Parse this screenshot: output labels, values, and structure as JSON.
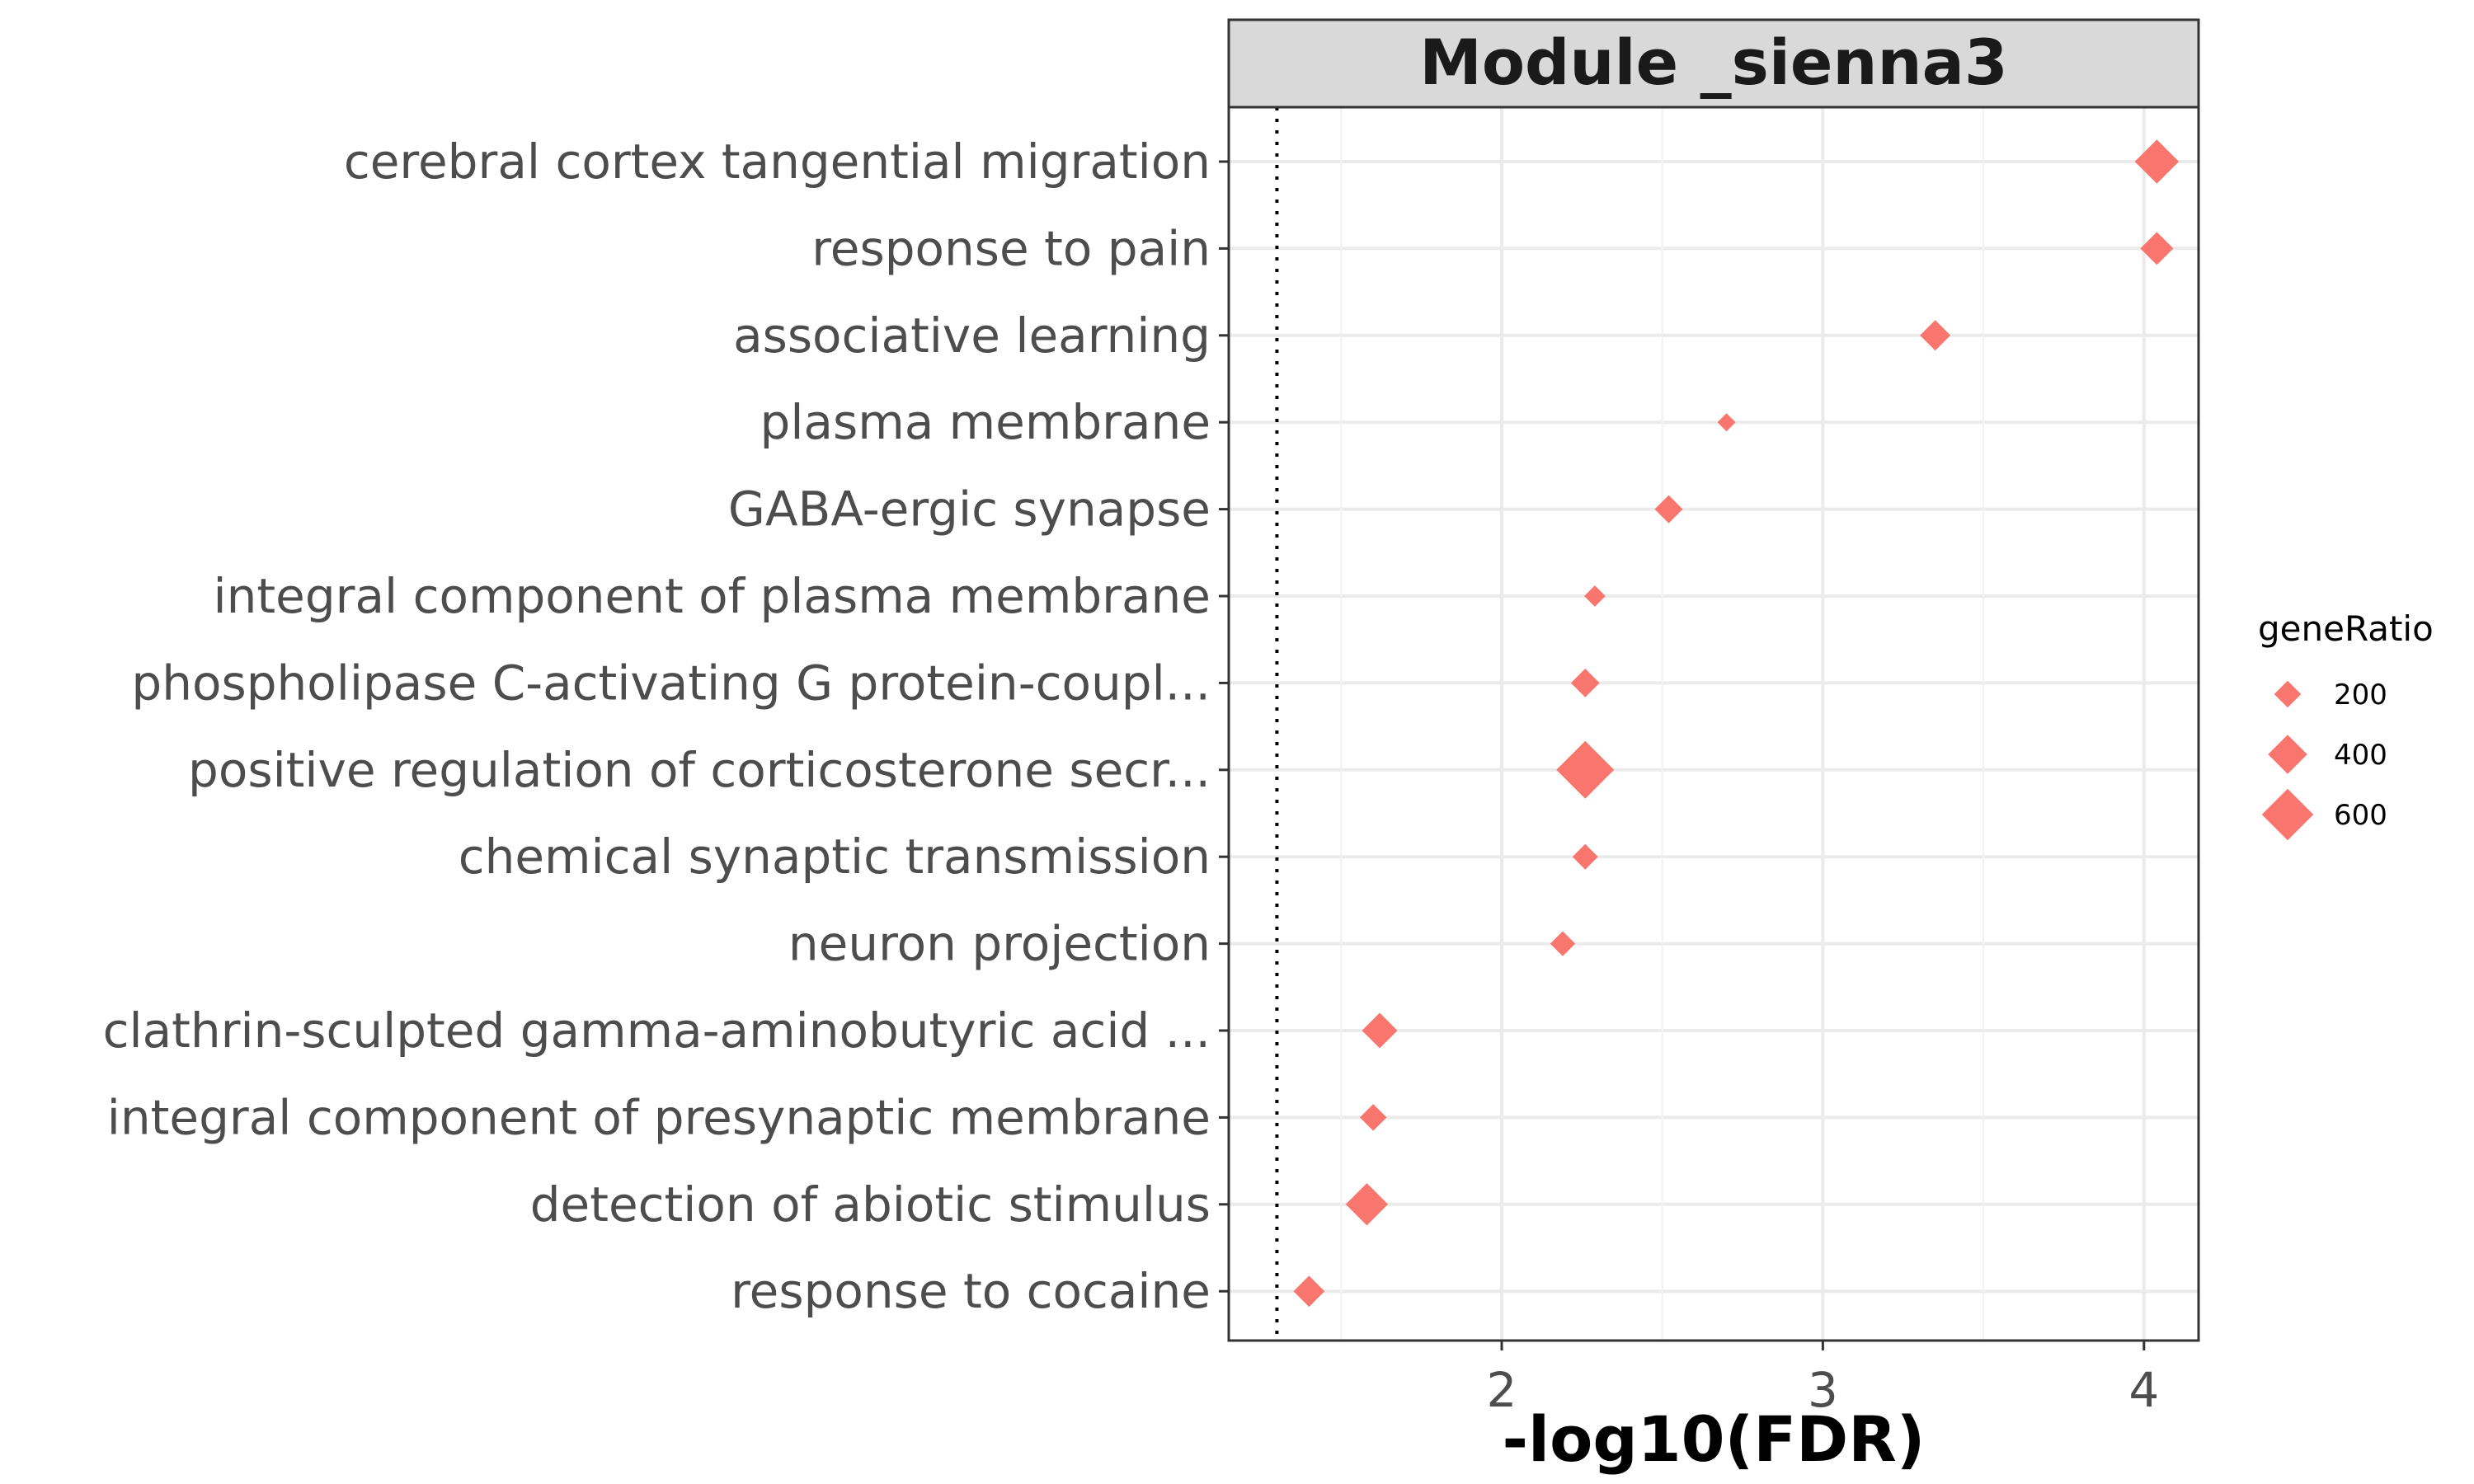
{
  "chart_data": {
    "type": "scatter",
    "title": "Module _sienna3",
    "xlabel": "-log10(FDR)",
    "ylabel": "",
    "xlim": [
      1.15,
      4.17
    ],
    "xticks": [
      2,
      3,
      4
    ],
    "reference_line": 1.3,
    "categories": [
      "cerebral cortex tangential migration",
      "response to pain",
      "associative learning",
      "plasma membrane",
      "GABA-ergic synapse",
      "integral component of plasma membrane",
      "phospholipase C-activating G protein-coupl...",
      "positive regulation of corticosterone secr...",
      "chemical synaptic transmission",
      "neuron projection",
      "clathrin-sculpted gamma-aminobutyric acid ...",
      "integral component of presynaptic membrane",
      "detection of abiotic stimulus",
      "response to cocaine"
    ],
    "series": [
      {
        "name": "geneRatio",
        "color": "#F8766D",
        "x": [
          4.04,
          4.04,
          3.35,
          2.7,
          2.52,
          2.29,
          2.26,
          2.26,
          2.26,
          2.19,
          1.62,
          1.6,
          1.58,
          1.4
        ],
        "size": [
          480,
          300,
          260,
          60,
          220,
          110,
          230,
          700,
          180,
          170,
          340,
          200,
          450,
          270
        ]
      }
    ],
    "legend": {
      "title": "geneRatio",
      "position": "right",
      "entries": [
        "200",
        "400",
        "600"
      ],
      "values": [
        200,
        400,
        600
      ]
    },
    "grid": true
  }
}
